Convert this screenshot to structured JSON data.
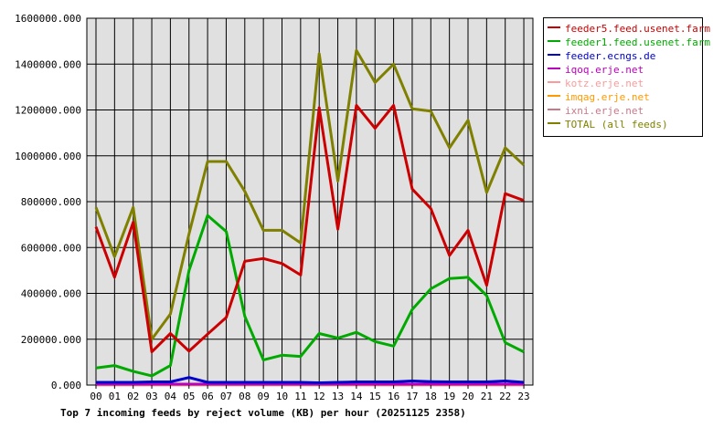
{
  "chart_data": {
    "type": "line",
    "title": "Top 7 incoming feeds by reject volume (KB) per hour (20251125 2358)",
    "categories": [
      "00",
      "01",
      "02",
      "03",
      "04",
      "05",
      "06",
      "07",
      "08",
      "09",
      "10",
      "11",
      "12",
      "13",
      "14",
      "15",
      "16",
      "17",
      "18",
      "19",
      "20",
      "21",
      "22",
      "23"
    ],
    "y_ticks": [
      "0.000",
      "200000.000",
      "400000.000",
      "600000.000",
      "800000.000",
      "1000000.000",
      "1200000.000",
      "1400000.000",
      "1600000.000"
    ],
    "ylim": [
      0,
      1600000
    ],
    "grid": true,
    "legend_position": "right",
    "series": [
      {
        "name": "feeder5.feed.usenet.farm",
        "color": "#cc0000",
        "values": [
          690000,
          470000,
          710000,
          145000,
          225000,
          148000,
          222000,
          295000,
          540000,
          552000,
          530000,
          480000,
          1210000,
          680000,
          1220000,
          1120000,
          1220000,
          855000,
          770000,
          565000,
          675000,
          435000,
          835000,
          805000
        ]
      },
      {
        "name": "feeder1.feed.usenet.farm",
        "color": "#00aa00",
        "values": [
          75000,
          85000,
          60000,
          40000,
          85000,
          500000,
          740000,
          670000,
          300000,
          110000,
          130000,
          125000,
          225000,
          205000,
          230000,
          190000,
          170000,
          330000,
          420000,
          465000,
          470000,
          390000,
          185000,
          145000
        ]
      },
      {
        "name": "feeder.ecngs.de",
        "color": "#0000cc",
        "values": [
          12000,
          12000,
          12000,
          14000,
          14000,
          33000,
          12000,
          12000,
          12000,
          12000,
          12000,
          12000,
          10000,
          12000,
          14000,
          14000,
          14000,
          18000,
          15000,
          14000,
          14000,
          14000,
          18000,
          12000
        ]
      },
      {
        "name": "iqoq.erje.net",
        "color": "#bb00bb",
        "values": [
          4000,
          4000,
          4000,
          4000,
          4000,
          4000,
          4000,
          4000,
          4000,
          4000,
          4000,
          4000,
          4000,
          4000,
          4000,
          4000,
          4000,
          4000,
          4000,
          4000,
          4000,
          4000,
          4000,
          4000
        ]
      },
      {
        "name": "kotz.erje.net",
        "color": "#ff9999",
        "values": [
          3000,
          3000,
          3000,
          3000,
          3000,
          3000,
          3000,
          3000,
          3000,
          3000,
          3000,
          3000,
          3000,
          3000,
          3000,
          3000,
          3000,
          3000,
          3000,
          3000,
          3000,
          3000,
          3000,
          3000
        ]
      },
      {
        "name": "imqag.erje.net",
        "color": "#ff9900",
        "values": [
          2000,
          2000,
          2000,
          2000,
          2000,
          2000,
          2000,
          2000,
          2000,
          2000,
          2000,
          2000,
          2000,
          2000,
          2000,
          2000,
          2000,
          2000,
          2000,
          2000,
          2000,
          2000,
          2000,
          2000
        ]
      },
      {
        "name": "ixni.erje.net",
        "color": "#cc7788",
        "values": [
          1000,
          1000,
          1000,
          1000,
          1000,
          1000,
          1000,
          1000,
          1000,
          1000,
          1000,
          1000,
          1000,
          1000,
          1000,
          1000,
          1000,
          1000,
          1000,
          1000,
          1000,
          1000,
          1000,
          1000
        ]
      },
      {
        "name": "TOTAL (all feeds)",
        "color": "#808000",
        "values": [
          775000,
          560000,
          775000,
          200000,
          310000,
          660000,
          975000,
          975000,
          845000,
          675000,
          675000,
          620000,
          1445000,
          890000,
          1460000,
          1320000,
          1400000,
          1205000,
          1195000,
          1035000,
          1155000,
          840000,
          1035000,
          960000
        ]
      }
    ]
  }
}
